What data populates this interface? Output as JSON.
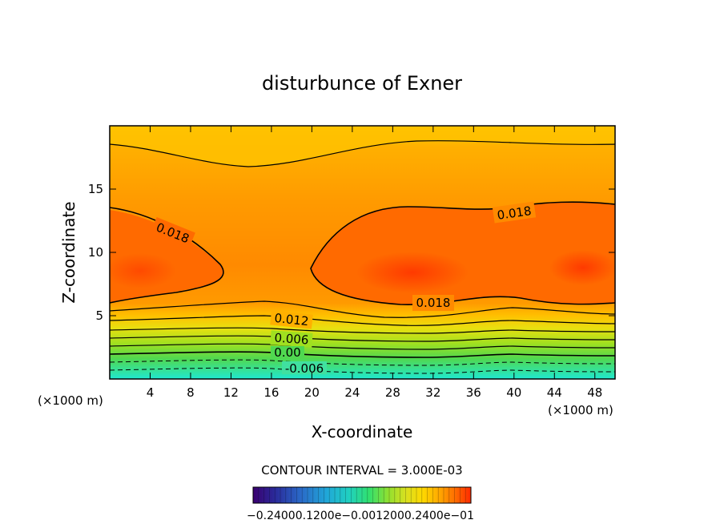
{
  "chart_data": {
    "type": "contour",
    "title": "disturbunce of Exner",
    "xlabel": "X-coordinate",
    "ylabel": "Z-coordinate",
    "x_unit_left": "(×1000 m)",
    "x_unit_right": "(×1000 m)",
    "xlim": [
      0,
      50
    ],
    "ylim": [
      0,
      20
    ],
    "x_ticks": [
      4,
      8,
      12,
      16,
      20,
      24,
      28,
      32,
      36,
      40,
      44,
      48
    ],
    "y_ticks": [
      5,
      10,
      15
    ],
    "contour_labels": [
      "0.018",
      "0.018",
      "0.018",
      "0.012",
      "0.006",
      "0.00",
      "-0.006"
    ],
    "contour_interval_text": "CONTOUR INTERVAL = 3.000E-03",
    "colorbar": {
      "label_left": "-0.24000",
      "label_mid_a": "-0.1200e-01",
      "label_mid_b": "0.0012",
      "label_mid_c": "0.2400e-01",
      "label_right": "0.2400e-01",
      "label_text": "−0.24000.1200e−0.0012000.2400e−01",
      "colors": [
        "#3a0070",
        "#2a2a9a",
        "#2a6ac8",
        "#20a8d8",
        "#20d0c0",
        "#30e070",
        "#90e030",
        "#d8e020",
        "#ffd800",
        "#ffa500",
        "#ff6a00",
        "#ff2a00"
      ]
    },
    "field_colors": {
      "top": "#ffd800",
      "mid": "#ffa010",
      "core": "#ff6010",
      "low1": "#d8e020",
      "low2": "#60d840",
      "bottom": "#20e8d0"
    },
    "grid": false,
    "legend": "bottom"
  }
}
